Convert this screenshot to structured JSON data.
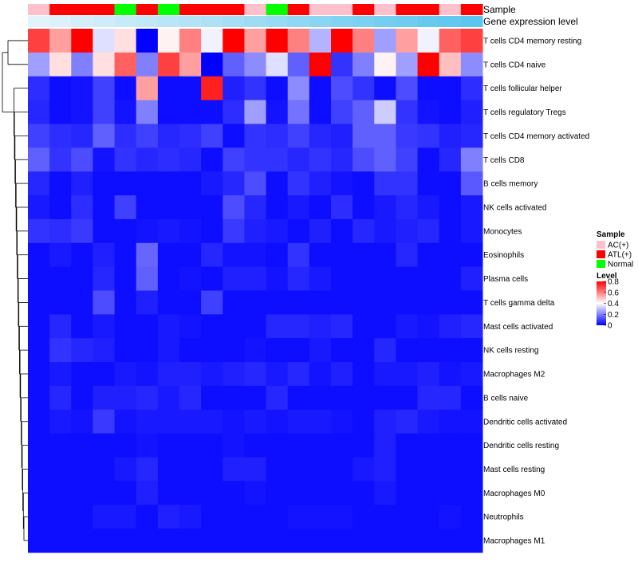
{
  "chart_data": {
    "type": "heatmap",
    "annotation_tracks": [
      {
        "name": "Sample",
        "values": [
          "AC(+)",
          "ATL(+)",
          "ATL(+)",
          "ATL(+)",
          "Normal",
          "ATL(+)",
          "Normal",
          "ATL(+)",
          "ATL(+)",
          "ATL(+)",
          "AC(+)",
          "Normal",
          "ATL(+)",
          "AC(+)",
          "AC(+)",
          "ATL(+)",
          "AC(+)",
          "ATL(+)",
          "ATL(+)",
          "AC(+)",
          "ATL(+)"
        ]
      },
      {
        "name": "Gene expression level",
        "values": [
          0.02,
          0.07,
          0.12,
          0.17,
          0.22,
          0.27,
          0.32,
          0.37,
          0.42,
          0.47,
          0.52,
          0.57,
          0.62,
          0.67,
          0.72,
          0.77,
          0.82,
          0.87,
          0.92,
          0.96,
          1.0
        ]
      }
    ],
    "rows": [
      "T cells CD4 memory resting",
      "T cells CD4 naive",
      "T cells follicular helper",
      "T cells regulatory  Tregs",
      "T cells CD4 memory activated",
      "T cells CD8",
      "B cells memory",
      "NK cells activated",
      "Monocytes",
      "Eosinophils",
      "Plasma cells",
      "T cells gamma delta",
      "Mast cells activated",
      "NK cells resting",
      "Macrophages M2",
      "B cells naive",
      "Dendritic cells activated",
      "Dendritic cells resting",
      "Mast cells resting",
      "Macrophages M0",
      "Neutrophils",
      "Macrophages M1"
    ],
    "matrix": [
      [
        0.7,
        0.55,
        0.8,
        0.35,
        0.45,
        0.0,
        0.42,
        0.6,
        0.38,
        0.8,
        0.55,
        0.8,
        0.6,
        0.28,
        0.8,
        0.6,
        0.25,
        0.55,
        0.38,
        0.65,
        0.7
      ],
      [
        0.25,
        0.45,
        0.2,
        0.45,
        0.65,
        0.2,
        0.7,
        0.55,
        0.0,
        0.15,
        0.22,
        0.35,
        0.15,
        0.8,
        0.08,
        0.2,
        0.42,
        0.25,
        0.8,
        0.5,
        0.22
      ],
      [
        0.07,
        0.02,
        0.03,
        0.1,
        0.02,
        0.55,
        0.02,
        0.02,
        0.75,
        0.05,
        0.08,
        0.02,
        0.22,
        0.02,
        0.12,
        0.08,
        0.02,
        0.12,
        0.02,
        0.02,
        0.07
      ],
      [
        0.06,
        0.02,
        0.03,
        0.1,
        0.03,
        0.2,
        0.02,
        0.02,
        0.02,
        0.07,
        0.25,
        0.03,
        0.18,
        0.02,
        0.1,
        0.15,
        0.32,
        0.08,
        0.03,
        0.02,
        0.05
      ],
      [
        0.1,
        0.07,
        0.06,
        0.15,
        0.07,
        0.1,
        0.06,
        0.07,
        0.1,
        0.02,
        0.08,
        0.07,
        0.1,
        0.06,
        0.05,
        0.15,
        0.15,
        0.09,
        0.08,
        0.05,
        0.06
      ],
      [
        0.15,
        0.08,
        0.12,
        0.03,
        0.08,
        0.06,
        0.07,
        0.06,
        0.02,
        0.1,
        0.08,
        0.08,
        0.06,
        0.08,
        0.06,
        0.12,
        0.15,
        0.1,
        0.02,
        0.06,
        0.2
      ],
      [
        0.06,
        0.02,
        0.05,
        0.02,
        0.02,
        0.02,
        0.02,
        0.02,
        0.04,
        0.06,
        0.12,
        0.02,
        0.08,
        0.05,
        0.03,
        0.02,
        0.08,
        0.08,
        0.02,
        0.02,
        0.14
      ],
      [
        0.04,
        0.02,
        0.07,
        0.02,
        0.1,
        0.02,
        0.02,
        0.02,
        0.02,
        0.12,
        0.06,
        0.02,
        0.04,
        0.02,
        0.07,
        0.02,
        0.04,
        0.06,
        0.04,
        0.02,
        0.04
      ],
      [
        0.08,
        0.07,
        0.09,
        0.02,
        0.02,
        0.03,
        0.04,
        0.03,
        0.02,
        0.09,
        0.05,
        0.04,
        0.02,
        0.05,
        0.02,
        0.06,
        0.04,
        0.05,
        0.06,
        0.02,
        0.04
      ],
      [
        0.02,
        0.04,
        0.02,
        0.05,
        0.02,
        0.16,
        0.02,
        0.02,
        0.06,
        0.03,
        0.03,
        0.02,
        0.08,
        0.02,
        0.02,
        0.02,
        0.02,
        0.06,
        0.02,
        0.02,
        0.02
      ],
      [
        0.02,
        0.02,
        0.02,
        0.06,
        0.02,
        0.15,
        0.02,
        0.03,
        0.02,
        0.05,
        0.05,
        0.03,
        0.06,
        0.04,
        0.02,
        0.02,
        0.02,
        0.02,
        0.02,
        0.02,
        0.05
      ],
      [
        0.02,
        0.02,
        0.02,
        0.12,
        0.02,
        0.05,
        0.02,
        0.02,
        0.1,
        0.02,
        0.02,
        0.02,
        0.02,
        0.02,
        0.02,
        0.02,
        0.02,
        0.02,
        0.02,
        0.02,
        0.02
      ],
      [
        0.02,
        0.06,
        0.02,
        0.04,
        0.02,
        0.02,
        0.04,
        0.03,
        0.02,
        0.02,
        0.02,
        0.06,
        0.06,
        0.05,
        0.06,
        0.02,
        0.02,
        0.04,
        0.03,
        0.05,
        0.06
      ],
      [
        0.02,
        0.08,
        0.06,
        0.05,
        0.02,
        0.02,
        0.04,
        0.02,
        0.02,
        0.02,
        0.03,
        0.02,
        0.02,
        0.04,
        0.02,
        0.02,
        0.06,
        0.02,
        0.02,
        0.02,
        0.02
      ],
      [
        0.02,
        0.04,
        0.02,
        0.02,
        0.04,
        0.03,
        0.05,
        0.05,
        0.04,
        0.05,
        0.06,
        0.04,
        0.06,
        0.03,
        0.05,
        0.02,
        0.04,
        0.04,
        0.05,
        0.03,
        0.04
      ],
      [
        0.02,
        0.06,
        0.02,
        0.05,
        0.05,
        0.06,
        0.04,
        0.06,
        0.02,
        0.02,
        0.02,
        0.06,
        0.02,
        0.02,
        0.02,
        0.02,
        0.02,
        0.02,
        0.06,
        0.06,
        0.02
      ],
      [
        0.02,
        0.04,
        0.03,
        0.09,
        0.03,
        0.04,
        0.04,
        0.04,
        0.04,
        0.03,
        0.04,
        0.03,
        0.04,
        0.04,
        0.03,
        0.02,
        0.05,
        0.06,
        0.04,
        0.03,
        0.03
      ],
      [
        0.02,
        0.02,
        0.02,
        0.02,
        0.02,
        0.03,
        0.02,
        0.02,
        0.02,
        0.03,
        0.02,
        0.02,
        0.02,
        0.02,
        0.02,
        0.02,
        0.05,
        0.02,
        0.02,
        0.02,
        0.02
      ],
      [
        0.02,
        0.02,
        0.02,
        0.02,
        0.04,
        0.06,
        0.02,
        0.02,
        0.02,
        0.05,
        0.05,
        0.02,
        0.02,
        0.02,
        0.02,
        0.04,
        0.05,
        0.02,
        0.02,
        0.02,
        0.02
      ],
      [
        0.02,
        0.02,
        0.02,
        0.02,
        0.02,
        0.05,
        0.02,
        0.02,
        0.02,
        0.02,
        0.03,
        0.02,
        0.02,
        0.02,
        0.02,
        0.02,
        0.04,
        0.02,
        0.02,
        0.02,
        0.02
      ],
      [
        0.02,
        0.02,
        0.02,
        0.04,
        0.04,
        0.02,
        0.05,
        0.04,
        0.02,
        0.02,
        0.02,
        0.02,
        0.03,
        0.03,
        0.03,
        0.02,
        0.02,
        0.02,
        0.02,
        0.03,
        0.02
      ],
      [
        0.02,
        0.02,
        0.02,
        0.02,
        0.02,
        0.02,
        0.02,
        0.02,
        0.02,
        0.02,
        0.02,
        0.02,
        0.02,
        0.02,
        0.02,
        0.02,
        0.02,
        0.02,
        0.02,
        0.02,
        0.02
      ]
    ],
    "legend": {
      "sample_title": "Sample",
      "sample_entries": [
        {
          "label": "AC(+)",
          "color": "#ffc0cb"
        },
        {
          "label": "ATL(+)",
          "color": "#ff0000"
        },
        {
          "label": "Normal",
          "color": "#00ff00"
        }
      ],
      "level_title": "Level",
      "level_ticks": [
        "0.8",
        "0.6",
        "0.4",
        "0.2",
        "0"
      ],
      "level_range": [
        0,
        0.8
      ]
    },
    "colors": {
      "low": "#0000ff",
      "mid": "#ffffff",
      "high": "#ff0000",
      "expr_low": "#e6f4fb",
      "expr_high": "#5bc6ee",
      "dendrogram": "#000000"
    }
  }
}
